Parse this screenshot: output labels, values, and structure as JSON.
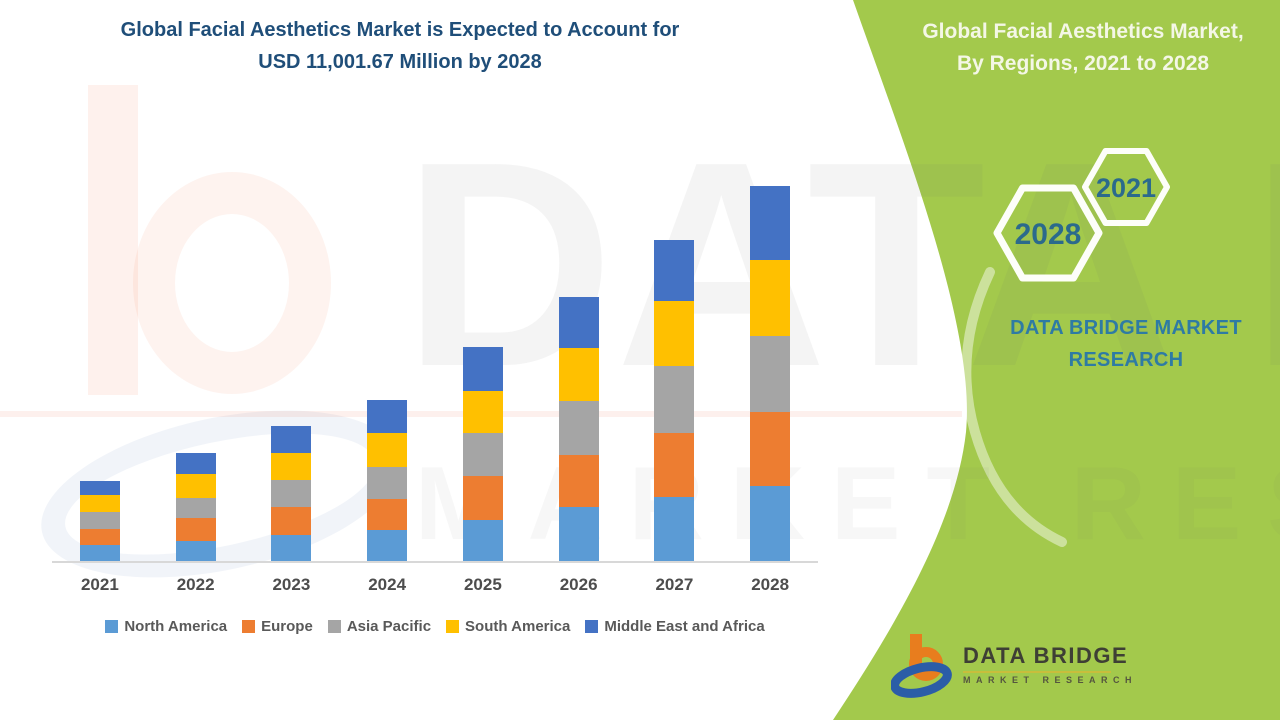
{
  "header": {
    "title_line1": "Global Facial Aesthetics Market is Expected to Account for",
    "title_line2": "USD 11,001.67 Million by 2028",
    "title_color": "#1F4E79"
  },
  "side_panel": {
    "bg_color": "#A3C94C",
    "title_line1": "Global Facial Aesthetics Market,",
    "title_line2": "By Regions, 2021 to 2028",
    "hexagon_labels": {
      "small": "2021",
      "large": "2028"
    },
    "hexagon_text_color": "#2B6A8C",
    "brand_text": "DATA BRIDGE MARKET RESEARCH",
    "logo": {
      "line1": "DATA BRIDGE",
      "line2": "MARKET RESEARCH"
    }
  },
  "watermark": {
    "line1": "DATA B",
    "line2": "MARKET RESEARCH"
  },
  "chart_data": {
    "type": "bar",
    "stacked": true,
    "title": "Global Facial Aesthetics Market is Expected to Account for USD 11,001.67 Million by 2028",
    "unit": "USD Million",
    "grid": false,
    "legend_position": "bottom",
    "xlabel": "",
    "ylabel": "",
    "categories": [
      "2021",
      "2022",
      "2023",
      "2024",
      "2025",
      "2026",
      "2027",
      "2028"
    ],
    "series": [
      {
        "name": "North America",
        "color": "#5B9BD5",
        "values": [
          460,
          590,
          750,
          900,
          1200,
          1570,
          1890,
          2215
        ]
      },
      {
        "name": "Europe",
        "color": "#ED7D31",
        "values": [
          470,
          675,
          835,
          930,
          1305,
          1545,
          1865,
          2170
        ]
      },
      {
        "name": "Asia Pacific",
        "color": "#A5A5A5",
        "values": [
          505,
          590,
          780,
          940,
          1240,
          1585,
          1980,
          2230
        ]
      },
      {
        "name": "South America",
        "color": "#FFC000",
        "values": [
          490,
          695,
          795,
          1000,
          1245,
          1540,
          1880,
          2220
        ]
      },
      {
        "name": "Middle East and Africa",
        "color": "#4472C4",
        "values": [
          420,
          625,
          805,
          960,
          1275,
          1515,
          1790,
          2165
        ]
      }
    ],
    "totals": [
      2345,
      3175,
      3965,
      4730,
      6265,
      7755,
      9405,
      11000
    ],
    "highlight_total_2028": 11001.67
  }
}
